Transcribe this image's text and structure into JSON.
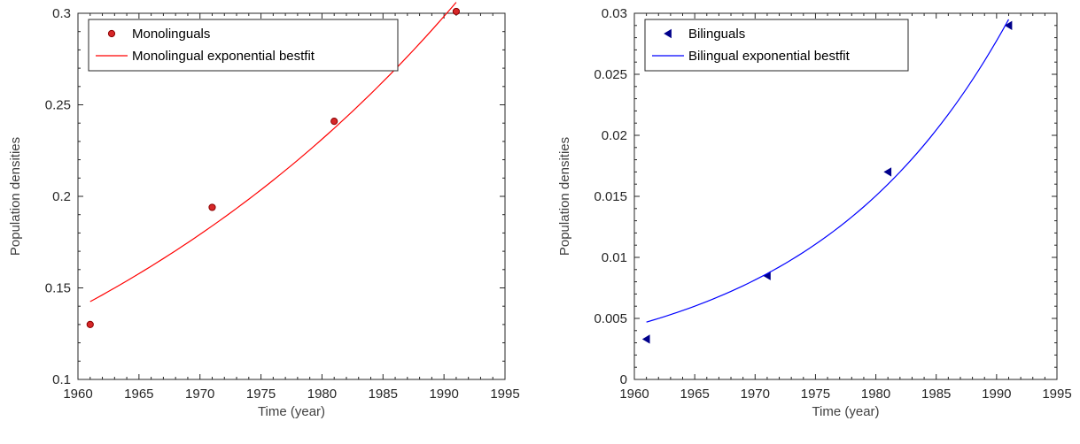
{
  "chart_data": [
    {
      "type": "scatter",
      "title": "",
      "xlabel": "Time (year)",
      "ylabel": "Population densities",
      "xlim": [
        1960,
        1995
      ],
      "ylim": [
        0.1,
        0.3
      ],
      "xticks": [
        1960,
        1965,
        1970,
        1975,
        1980,
        1985,
        1990,
        1995
      ],
      "xtick_labels": [
        "1960",
        "1965",
        "1970",
        "1975",
        "1980",
        "1985",
        "1990",
        "1995"
      ],
      "yticks": [
        0.1,
        0.15,
        0.2,
        0.25,
        0.3
      ],
      "ytick_labels": [
        "0.1",
        "0.15",
        "0.2",
        "0.25",
        "0.3"
      ],
      "grid": false,
      "legend_position": "top-left",
      "series": [
        {
          "name": "Monolinguals",
          "kind": "markers",
          "marker": "circle",
          "color": "#8B0000",
          "x": [
            1961,
            1971,
            1981,
            1991
          ],
          "y": [
            0.13,
            0.194,
            0.241,
            0.301
          ]
        },
        {
          "name": "Monolingual exponential bestfit",
          "kind": "exponential-fit",
          "color": "#FF0000",
          "x_range": [
            1961,
            1991
          ],
          "y_start": 0.1425,
          "y_end": 0.306
        }
      ]
    },
    {
      "type": "scatter",
      "title": "",
      "xlabel": "Time (year)",
      "ylabel": "Population densities",
      "xlim": [
        1960,
        1995
      ],
      "ylim": [
        0,
        0.03
      ],
      "xticks": [
        1960,
        1965,
        1970,
        1975,
        1980,
        1985,
        1990,
        1995
      ],
      "xtick_labels": [
        "1960",
        "1965",
        "1970",
        "1975",
        "1980",
        "1985",
        "1990",
        "1995"
      ],
      "yticks": [
        0,
        0.005,
        0.01,
        0.015,
        0.02,
        0.025,
        0.03
      ],
      "ytick_labels": [
        "0",
        "0.005",
        "0.01",
        "0.015",
        "0.02",
        "0.025",
        "0.03"
      ],
      "grid": false,
      "legend_position": "top-left",
      "series": [
        {
          "name": "Bilinguals",
          "kind": "markers",
          "marker": "triangle-left",
          "color": "#00008B",
          "x": [
            1961,
            1971,
            1981,
            1991
          ],
          "y": [
            0.0033,
            0.0085,
            0.017,
            0.029
          ]
        },
        {
          "name": "Bilingual exponential bestfit",
          "kind": "exponential-fit",
          "color": "#0000FF",
          "x_range": [
            1961,
            1991
          ],
          "y_start": 0.0047,
          "y_end": 0.0295
        }
      ]
    }
  ]
}
